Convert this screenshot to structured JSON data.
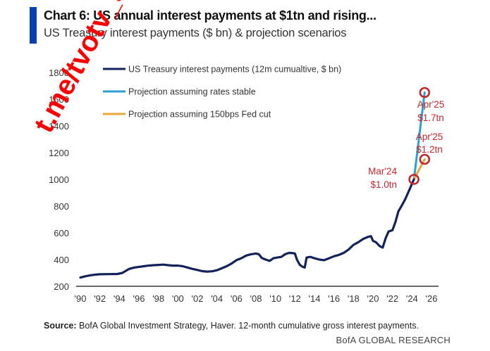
{
  "header": {
    "title": "Chart 6: US annual interest payments at $1tn and rising...",
    "subtitle": "US Treasury interest payments ($ bn) & projection scenarios"
  },
  "footer": {
    "source_label": "Source:",
    "source_text": " BofA Global Investment Strategy, Haver. 12-month cumulative gross interest payments.",
    "brand": "BofA GLOBAL RESEARCH"
  },
  "watermark": "t.me/tvotv_sk",
  "colors": {
    "history": "#13235a",
    "stable": "#2e9fd4",
    "cut": "#e9a93a",
    "annotation": "#c0282d",
    "accent": "#0a3fb0"
  },
  "chart_data": {
    "type": "line",
    "title": "Chart 6: US annual interest payments at $1tn and rising...",
    "subtitle": "US Treasury interest payments ($ bn) & projection scenarios",
    "xlabel": "",
    "ylabel": "",
    "xlim": [
      1990,
      2026
    ],
    "ylim": [
      200,
      1800
    ],
    "grid": false,
    "legend_position": "top-left",
    "x_ticks": [
      "'90",
      "'92",
      "'94",
      "'96",
      "'98",
      "'00",
      "'02",
      "'04",
      "'06",
      "'08",
      "'10",
      "'12",
      "'14",
      "'16",
      "'18",
      "'20",
      "'22",
      "'24",
      "'26"
    ],
    "y_ticks": [
      200,
      400,
      600,
      800,
      1000,
      1200,
      1400,
      1600,
      1800
    ],
    "series": [
      {
        "name": "US Treasury interest payments (12m cumualtive, $ bn)",
        "color_key": "history",
        "x": [
          1990.0,
          1990.5,
          1991.0,
          1991.5,
          1992.0,
          1993.0,
          1993.8,
          1994.3,
          1995.0,
          1995.5,
          1996.0,
          1996.5,
          1997.0,
          1997.5,
          1998.0,
          1998.5,
          1999.0,
          1999.5,
          2000.0,
          2000.5,
          2001.0,
          2001.5,
          2002.0,
          2002.5,
          2003.0,
          2003.5,
          2004.0,
          2004.5,
          2005.0,
          2005.5,
          2006.0,
          2006.5,
          2007.0,
          2007.5,
          2008.0,
          2008.3,
          2008.6,
          2009.0,
          2009.4,
          2009.8,
          2010.2,
          2010.6,
          2011.0,
          2011.4,
          2011.8,
          2012.0,
          2012.2,
          2012.5,
          2012.8,
          2013.0,
          2013.2,
          2013.6,
          2014.0,
          2014.5,
          2015.0,
          2015.5,
          2016.0,
          2016.5,
          2017.0,
          2017.5,
          2018.0,
          2018.5,
          2019.0,
          2019.5,
          2019.8,
          2020.0,
          2020.3,
          2020.7,
          2021.0,
          2021.3,
          2021.6,
          2022.0,
          2022.3,
          2022.6,
          2023.0,
          2023.3,
          2023.6,
          2023.9,
          2024.2
        ],
        "y": [
          265,
          275,
          282,
          287,
          290,
          291,
          292,
          300,
          330,
          340,
          345,
          350,
          355,
          358,
          360,
          362,
          358,
          355,
          355,
          350,
          340,
          330,
          322,
          313,
          310,
          312,
          320,
          335,
          350,
          370,
          395,
          410,
          430,
          440,
          445,
          440,
          412,
          400,
          390,
          410,
          415,
          420,
          440,
          450,
          448,
          445,
          400,
          360,
          345,
          340,
          415,
          420,
          410,
          400,
          395,
          410,
          425,
          435,
          450,
          475,
          510,
          530,
          555,
          570,
          575,
          540,
          530,
          500,
          490,
          560,
          610,
          620,
          680,
          760,
          810,
          850,
          900,
          950,
          1000
        ]
      },
      {
        "name": "Projection assuming rates stable",
        "color_key": "stable",
        "x": [
          2024.2,
          2025.3
        ],
        "y": [
          1000,
          1650
        ]
      },
      {
        "name": "Projection assuming 150bps Fed cut",
        "color_key": "cut",
        "x": [
          2024.2,
          2025.3
        ],
        "y": [
          1000,
          1150
        ]
      }
    ],
    "annotations": [
      {
        "label_line1": "Apr'25",
        "label_line2": "$1.7tn",
        "x": 2025.3,
        "y": 1650
      },
      {
        "label_line1": "Apr'25",
        "label_line2": "$1.2tn",
        "x": 2025.3,
        "y": 1150
      },
      {
        "label_line1": "Mar'24",
        "label_line2": "$1.0tn",
        "x": 2024.2,
        "y": 1000
      }
    ]
  }
}
